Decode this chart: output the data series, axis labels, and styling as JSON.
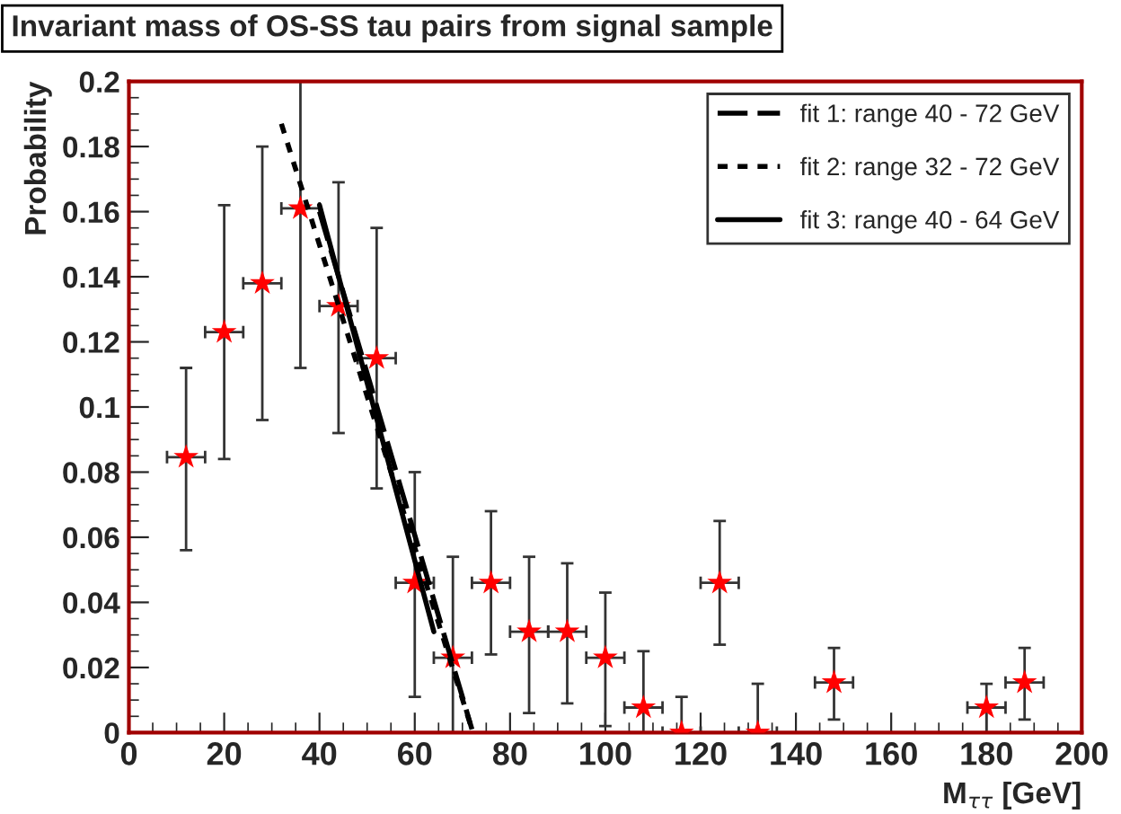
{
  "chart_data": {
    "type": "scatter",
    "title": "Invariant mass of OS-SS tau pairs from signal sample",
    "xlabel": "M$_{ττ}$ [GeV]",
    "ylabel": "Probability",
    "xlim": [
      0,
      200
    ],
    "ylim": [
      0,
      0.2
    ],
    "xticks": [
      0,
      20,
      40,
      60,
      80,
      100,
      120,
      140,
      160,
      180,
      200
    ],
    "yticks": [
      0,
      0.02,
      0.04,
      0.06,
      0.08,
      0.1,
      0.12,
      0.14,
      0.16,
      0.18,
      0.2
    ],
    "grid": false,
    "legend": "top right",
    "series": [
      {
        "color": "#ff0000",
        "marker": "star",
        "x": [
          12,
          20,
          28,
          36,
          44,
          52,
          60,
          68,
          76,
          84,
          92,
          100,
          108,
          116,
          124,
          132,
          148,
          180,
          188
        ],
        "values": [
          0.0846,
          0.123,
          0.138,
          0.161,
          0.131,
          0.115,
          0.046,
          0.023,
          0.046,
          0.031,
          0.031,
          0.023,
          0.0077,
          0,
          0.046,
          0,
          0.0154,
          0.0077,
          0.0154
        ],
        "errors": [
          [
            0.056,
            0.112
          ],
          [
            0.084,
            0.162
          ],
          [
            0.096,
            0.18
          ],
          [
            0.112,
            0.2
          ],
          [
            0.092,
            0.169
          ],
          [
            0.075,
            0.155
          ],
          [
            0.011,
            0.08
          ],
          [
            0,
            0.054
          ],
          [
            0.024,
            0.068
          ],
          [
            0.006,
            0.054
          ],
          [
            0.009,
            0.052
          ],
          [
            0.002,
            0.043
          ],
          [
            0,
            0.025
          ],
          [
            0,
            0.011
          ],
          [
            0.027,
            0.065
          ],
          [
            0,
            0.015
          ],
          [
            0.004,
            0.026
          ],
          [
            0,
            0.015
          ],
          [
            0.004,
            0.026
          ]
        ],
        "xerrors": [
          4,
          4,
          4,
          4,
          4,
          4,
          4,
          4,
          4,
          4,
          4,
          4,
          4,
          4,
          4,
          4,
          4,
          4,
          4
        ]
      },
      {
        "type": "line",
        "name": "fit 1: range 40 - 72 GeV",
        "color": "#000000",
        "line_style": "dashed",
        "marker": "none",
        "x": [
          40,
          72
        ],
        "values": [
          0.16,
          0.001
        ]
      },
      {
        "type": "line",
        "name": "fit 2: range 32 - 72 GeV",
        "color": "#000000",
        "line_style": "dotted",
        "marker": "none",
        "x": [
          32,
          72
        ],
        "values": [
          0.187,
          0.001
        ]
      },
      {
        "type": "line",
        "name": "fit 3: range 40 - 64 GeV",
        "color": "#000000",
        "line_style": "solid",
        "marker": "none",
        "x": [
          40,
          64
        ],
        "values": [
          0.162,
          0.031
        ]
      }
    ]
  }
}
